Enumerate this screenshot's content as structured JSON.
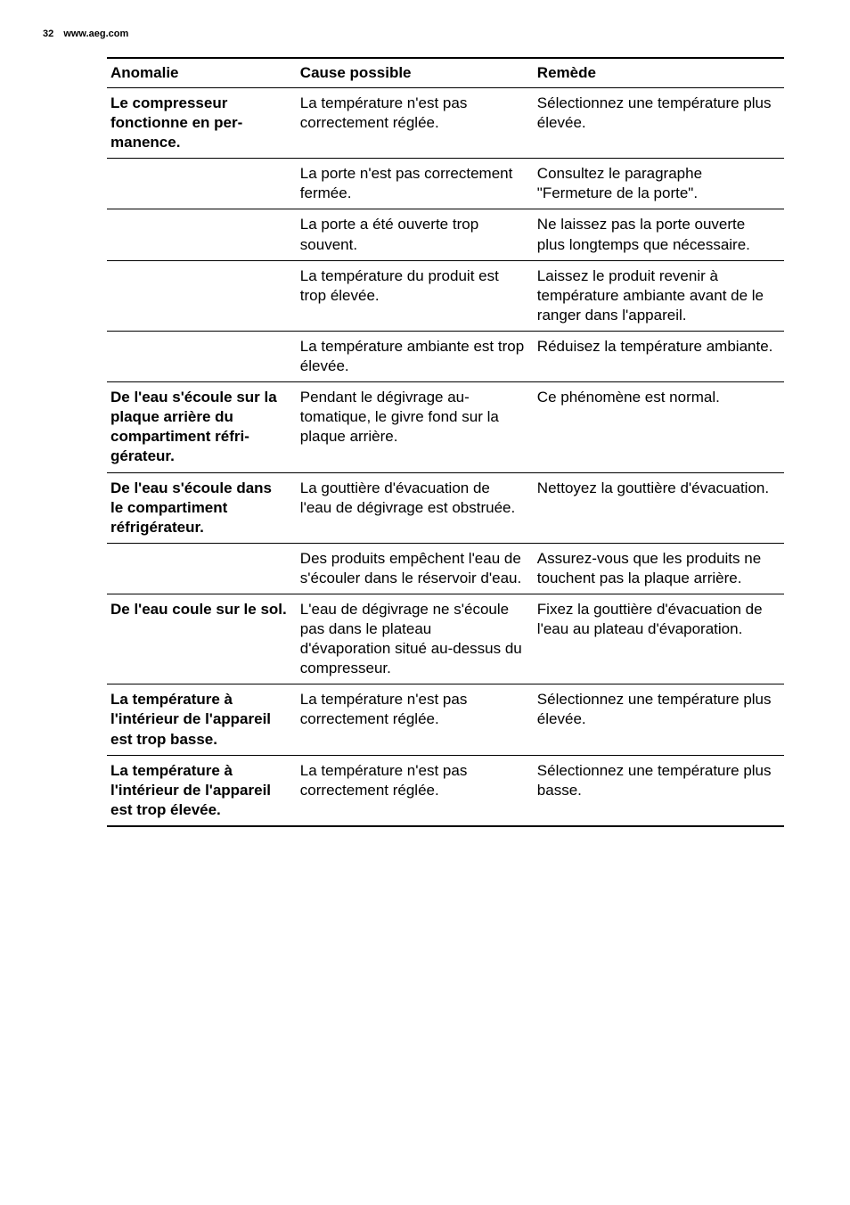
{
  "header": {
    "page_number": "32",
    "site_url": "www.aeg.com"
  },
  "table": {
    "headers": {
      "anomaly": "Anomalie",
      "cause": "Cause possible",
      "remedy": "Remède"
    },
    "rows": [
      {
        "anomaly": "Le compresseur fonctionne en per­manence.",
        "cause": "La température n'est pas correctement réglée.",
        "remedy": "Sélectionnez une tempéra­ture plus élevée."
      },
      {
        "anomaly": "",
        "cause": "La porte n'est pas correc­tement fermée.",
        "remedy": "Consultez le paragraphe \"Fermeture de la porte\"."
      },
      {
        "anomaly": "",
        "cause": "La porte a été ouverte trop souvent.",
        "remedy": "Ne laissez pas la porte ou­verte plus longtemps que nécessaire."
      },
      {
        "anomaly": "",
        "cause": "La température du pro­duit est trop élevée.",
        "remedy": "Laissez le produit revenir à température ambiante avant de le ranger dans l'appareil."
      },
      {
        "anomaly": "",
        "cause": "La température ambiante est trop élevée.",
        "remedy": "Réduisez la température ambiante."
      },
      {
        "anomaly": "De l'eau s'écoule sur la plaque arrière du compartiment réfri­gérateur.",
        "cause": "Pendant le dégivrage au­tomatique, le givre fond sur la plaque arrière.",
        "remedy": "Ce phénomène est nor­mal."
      },
      {
        "anomaly": "De l'eau s'écoule dans le comparti­ment réfrigérateur.",
        "cause": "La gouttière d'évacuation de l'eau de dégivrage est obstruée.",
        "remedy": "Nettoyez la gouttière d'évacuation."
      },
      {
        "anomaly": "",
        "cause": "Des produits empêchent l'eau de s'écouler dans le réservoir d'eau.",
        "remedy": "Assurez-vous que les pro­duits ne touchent pas la plaque arrière."
      },
      {
        "anomaly": "De l'eau coule sur le sol.",
        "cause": "L'eau de dégivrage ne s'écoule pas dans le pla­teau d'évaporation situé au-dessus du compres­seur.",
        "remedy": "Fixez la gouttière d'éva­cuation de l'eau au plateau d'évaporation."
      },
      {
        "anomaly": "La température à l'intérieur de l'appa­reil est trop basse.",
        "cause": "La température n'est pas correctement réglée.",
        "remedy": "Sélectionnez une tempéra­ture plus élevée."
      },
      {
        "anomaly": "La température à l'intérieur de l'appa­reil est trop élevée.",
        "cause": "La température n'est pas correctement réglée.",
        "remedy": "Sélectionnez une tempéra­ture plus basse."
      }
    ]
  }
}
